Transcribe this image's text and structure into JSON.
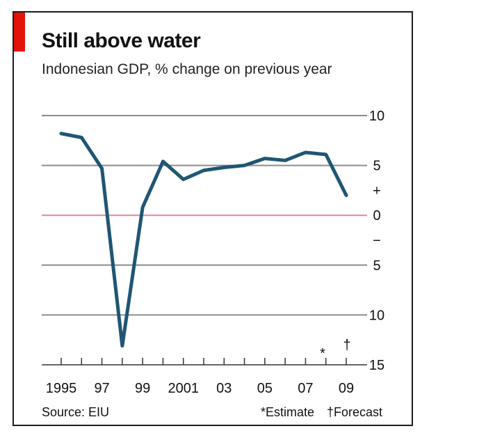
{
  "title": "Still above water",
  "subtitle": "Indonesian GDP, % change on previous year",
  "source": "Source: EIU",
  "estimate_note": "*Estimate",
  "forecast_note": "†Forecast",
  "estimate_mark": "*",
  "forecast_mark": "†",
  "colors": {
    "line": "#1f5673",
    "zero_line": "#e2859b",
    "grid": "#8c8c8c",
    "accent": "#e3120b"
  },
  "chart_data": {
    "type": "line",
    "title": "Still above water",
    "subtitle": "Indonesian GDP, % change on previous year",
    "xlabel": "",
    "ylabel": "",
    "ylim": [
      -15,
      10
    ],
    "x": [
      1995,
      1996,
      1997,
      1998,
      1999,
      2000,
      2001,
      2002,
      2003,
      2004,
      2005,
      2006,
      2007,
      2008,
      2009
    ],
    "series": [
      {
        "values": [
          8.2,
          7.8,
          4.7,
          -13.1,
          0.8,
          5.4,
          3.6,
          4.5,
          4.8,
          5.0,
          5.7,
          5.5,
          6.3,
          6.1,
          2.0
        ]
      }
    ],
    "x_tick_labels": [
      "1995",
      "97",
      "99",
      "2001",
      "03",
      "05",
      "07",
      "09"
    ],
    "y_tick_labels": [
      {
        "value": 10,
        "label": "10"
      },
      {
        "value": 5,
        "label": "5"
      },
      {
        "value": 0,
        "label": "0"
      },
      {
        "value": -5,
        "label": "5"
      },
      {
        "value": -10,
        "label": "10"
      },
      {
        "value": -15,
        "label": "15"
      }
    ],
    "sign_labels": {
      "plus": "+",
      "minus": "−"
    },
    "grid": true,
    "axis_side": "right",
    "source": "Source: EIU"
  }
}
